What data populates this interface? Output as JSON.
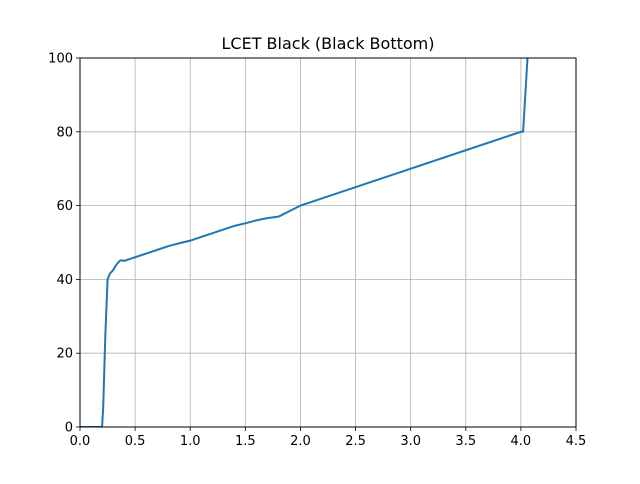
{
  "chart_data": {
    "type": "line",
    "title": "LCET Black (Black Bottom)",
    "xlabel": "",
    "ylabel": "",
    "xlim": [
      0.0,
      4.5
    ],
    "ylim": [
      0,
      100
    ],
    "xticks": [
      0.0,
      0.5,
      1.0,
      1.5,
      2.0,
      2.5,
      3.0,
      3.5,
      4.0,
      4.5
    ],
    "xtick_labels": [
      "0.0",
      "0.5",
      "1.0",
      "1.5",
      "2.0",
      "2.5",
      "3.0",
      "3.5",
      "4.0",
      "4.5"
    ],
    "yticks": [
      0,
      20,
      40,
      60,
      80,
      100
    ],
    "ytick_labels": [
      "0",
      "20",
      "40",
      "60",
      "80",
      "100"
    ],
    "grid": true,
    "legend": "none",
    "series": [
      {
        "color": "#1f77b4",
        "x": [
          0.0,
          0.2,
          0.21,
          0.23,
          0.25,
          0.27,
          0.3,
          0.33,
          0.36,
          0.38,
          0.4,
          0.45,
          0.5,
          0.6,
          0.7,
          0.8,
          0.9,
          1.0,
          1.1,
          1.2,
          1.3,
          1.4,
          1.5,
          1.6,
          1.7,
          1.8,
          1.9,
          2.0,
          2.1,
          2.2,
          2.3,
          2.4,
          2.5,
          2.6,
          2.7,
          2.8,
          2.9,
          3.0,
          3.1,
          3.2,
          3.3,
          3.4,
          3.5,
          3.6,
          3.7,
          3.8,
          3.9,
          4.0,
          4.02,
          4.05,
          4.06
        ],
        "y": [
          0,
          0,
          5,
          25,
          40,
          41.5,
          42.5,
          44,
          45,
          45.2,
          45,
          45.5,
          46,
          47,
          48,
          49,
          49.8,
          50.5,
          51.5,
          52.5,
          53.5,
          54.5,
          55.2,
          56,
          56.6,
          57,
          58.5,
          60,
          61,
          62,
          63,
          64,
          65,
          66,
          67,
          68,
          69,
          70,
          71,
          72,
          73,
          74,
          75,
          76,
          77,
          78,
          79,
          80,
          80,
          95,
          100
        ]
      }
    ]
  }
}
